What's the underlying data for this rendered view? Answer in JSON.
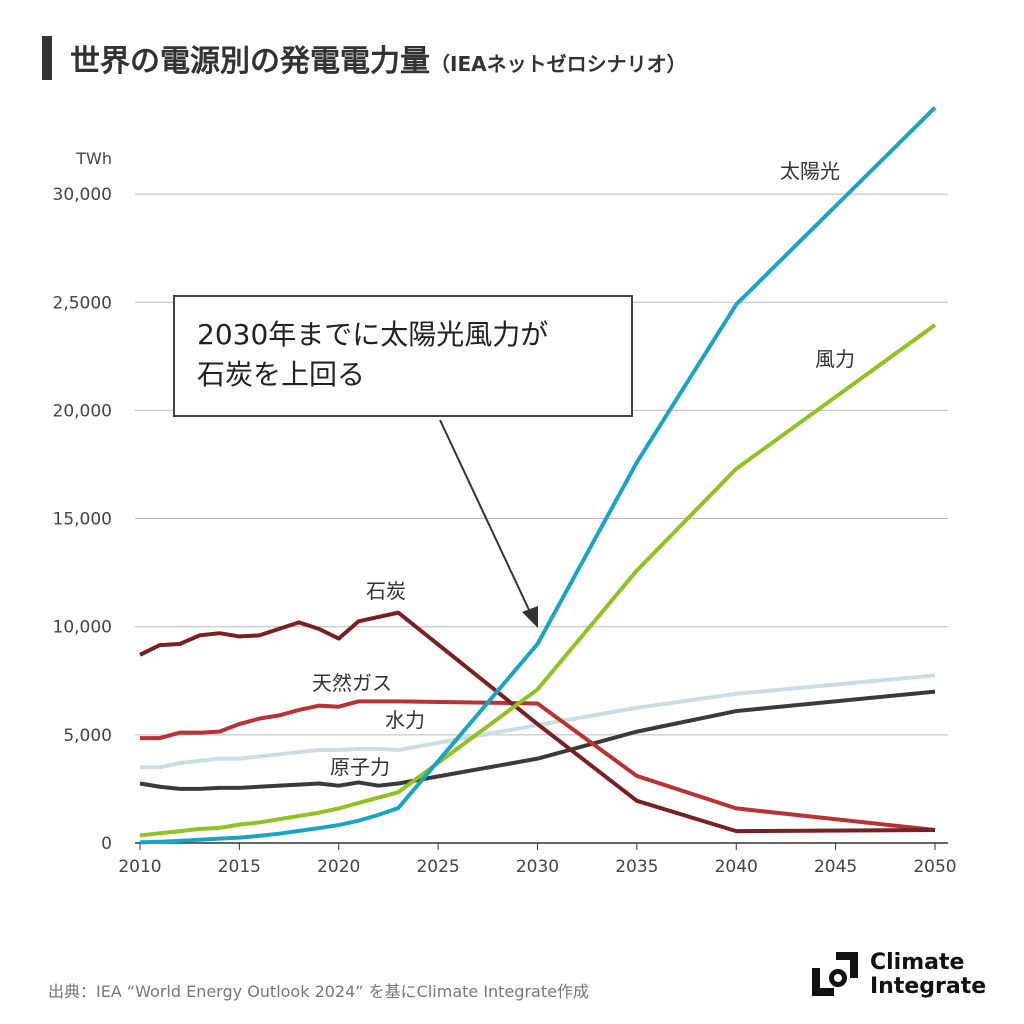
{
  "title": "世界の電源別の発電電力量",
  "subtitle": "（IEAネットゼロシナリオ）",
  "callout": [
    "2030年までに太陽光風力が",
    "石炭を上回る"
  ],
  "source": "出典：IEA “World Energy Outlook 2024” を基にClimate Integrate作成",
  "logo": [
    "Climate",
    "Integrate"
  ],
  "chart_data": {
    "type": "line",
    "ylabel": "TWh",
    "ylim": [
      0,
      35000
    ],
    "xlim": [
      2010,
      2050
    ],
    "grid": true,
    "yticks": [
      0,
      5000,
      10000,
      15000,
      20000,
      25000,
      30000
    ],
    "ytick_labels": [
      "0",
      "5,000",
      "10,000",
      "15,000",
      "20,000",
      "2,5000",
      "30,000"
    ],
    "xticks": [
      2010,
      2015,
      2020,
      2025,
      2030,
      2035,
      2040,
      2045,
      2050
    ],
    "x": [
      2010,
      2011,
      2012,
      2013,
      2014,
      2015,
      2016,
      2017,
      2018,
      2019,
      2020,
      2021,
      2022,
      2023,
      2030,
      2035,
      2040,
      2050
    ],
    "series": [
      {
        "name": "原子力",
        "color": "#3a3a3a",
        "values": [
          2750,
          2600,
          2500,
          2500,
          2550,
          2550,
          2600,
          2650,
          2700,
          2750,
          2650,
          2800,
          2650,
          2750,
          3900,
          5150,
          6100,
          7000
        ]
      },
      {
        "name": "水力",
        "color": "#c9dde4",
        "values": [
          3500,
          3500,
          3700,
          3800,
          3900,
          3900,
          4000,
          4100,
          4200,
          4300,
          4300,
          4350,
          4350,
          4300,
          5450,
          6250,
          6900,
          7750
        ]
      },
      {
        "name": "天然ガス",
        "color": "#b83236",
        "values": [
          4850,
          4850,
          5100,
          5100,
          5150,
          5500,
          5750,
          5900,
          6150,
          6350,
          6300,
          6550,
          6550,
          6550,
          6450,
          3100,
          1600,
          600
        ]
      },
      {
        "name": "石炭",
        "color": "#7a1f22",
        "values": [
          8700,
          9150,
          9200,
          9600,
          9700,
          9550,
          9600,
          9900,
          10200,
          9900,
          9450,
          10250,
          10450,
          10650,
          5500,
          1950,
          550,
          600
        ]
      },
      {
        "name": "風力",
        "color": "#8fc31f",
        "values": [
          350,
          450,
          550,
          650,
          700,
          850,
          950,
          1100,
          1250,
          1400,
          1600,
          1850,
          2100,
          2350,
          7100,
          12600,
          17300,
          23950
        ]
      },
      {
        "name": "太陽光",
        "color": "#1aa4c4",
        "values": [
          30,
          60,
          100,
          150,
          200,
          250,
          330,
          430,
          560,
          690,
          830,
          1030,
          1300,
          1620,
          9200,
          17600,
          24900,
          34000
        ]
      }
    ]
  }
}
